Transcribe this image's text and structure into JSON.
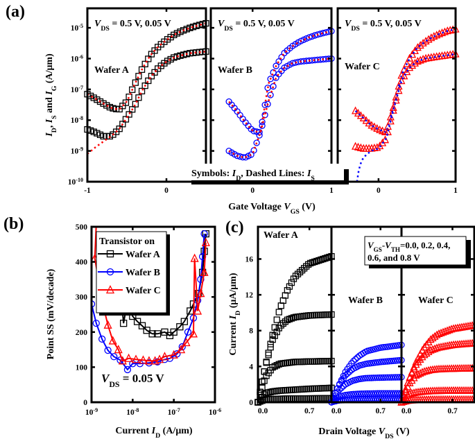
{
  "figure_labels": {
    "a": "(a)",
    "b": "(b)",
    "c": "(c)"
  },
  "chart_data": [
    {
      "panel": "(a)",
      "type": "scatter",
      "yscale": "log",
      "ylim": [
        1e-10,
        4.3e-05
      ],
      "yticks_base": "10",
      "yticks_exp": [
        -10,
        -9,
        -8,
        -7,
        -6,
        -5
      ],
      "ylabel": [
        [
          "I",
          "i"
        ],
        [
          "D",
          "sub"
        ],
        [
          ", ",
          ""
        ],
        [
          "I",
          "i"
        ],
        [
          "S",
          "sub"
        ],
        [
          " and ",
          ""
        ],
        [
          "I",
          "i"
        ],
        [
          "G",
          "sub"
        ],
        [
          " (A/μm)",
          ""
        ]
      ],
      "xlabel": [
        [
          "Gate Voltage ",
          ""
        ],
        [
          "V",
          "i"
        ],
        [
          "GS",
          "sub"
        ],
        [
          " (V)",
          ""
        ]
      ],
      "note": [
        [
          "Symbols: ",
          ""
        ],
        [
          "I",
          "i"
        ],
        [
          "D",
          "sub"
        ],
        [
          ",  Dashed Lines: ",
          ""
        ],
        [
          "I",
          "i"
        ],
        [
          "S",
          "sub"
        ]
      ],
      "subplots": [
        {
          "label": "Wafer A",
          "annotation": [
            [
              "V",
              "i"
            ],
            [
              "DS",
              "sub"
            ],
            [
              " = 0.5 V, 0.05 V",
              ""
            ]
          ],
          "xlim": [
            -1,
            0.5
          ],
          "xticks": [
            -1,
            0
          ],
          "marker": "square",
          "color": "#000000",
          "is_color": "#ff0000",
          "series": [
            {
              "vds": 0.5,
              "x": [
                -1,
                -0.9,
                -0.8,
                -0.7,
                -0.6,
                -0.5,
                -0.4,
                -0.3,
                -0.2,
                -0.1,
                0,
                0.1,
                0.2,
                0.3,
                0.4,
                0.5
              ],
              "id": [
                7e-08,
                5e-08,
                3.5e-08,
                2.5e-08,
                2.2e-08,
                4e-08,
                1.5e-07,
                5e-07,
                1.3e-06,
                2.5e-06,
                4e-06,
                6e-06,
                8e-06,
                1e-05,
                1.2e-05,
                1.4e-05
              ]
            },
            {
              "vds": 0.05,
              "x": [
                -1,
                -0.9,
                -0.8,
                -0.7,
                -0.6,
                -0.5,
                -0.4,
                -0.3,
                -0.2,
                -0.1,
                0,
                0.1,
                0.2,
                0.3,
                0.4,
                0.5
              ],
              "id": [
                5e-09,
                4e-09,
                3e-09,
                3e-09,
                5e-09,
                1.2e-08,
                3e-08,
                1e-07,
                2.5e-07,
                5e-07,
                8e-07,
                1.1e-06,
                1.3e-06,
                1.5e-06,
                1.6e-06,
                1.7e-06
              ],
              "is_x": [
                -1,
                -0.9,
                -0.8,
                -0.7,
                -0.6,
                -0.5,
                -0.4,
                -0.3,
                -0.2,
                -0.1,
                0,
                0.1,
                0.2,
                0.3,
                0.4,
                0.5
              ],
              "is": [
                8e-10,
                1.3e-09,
                2e-09,
                3e-09,
                5e-09,
                1.2e-08,
                3e-08,
                1e-07,
                2.5e-07,
                5e-07,
                8e-07,
                1.1e-06,
                1.3e-06,
                1.5e-06,
                1.6e-06,
                1.7e-06
              ]
            }
          ]
        },
        {
          "label": "Wafer B",
          "annotation": [
            [
              "V",
              "i"
            ],
            [
              "DS",
              "sub"
            ],
            [
              " = 0.5 V, 0.05 V",
              ""
            ]
          ],
          "xlim": [
            -0.53,
            1
          ],
          "xticks": [
            0,
            1
          ],
          "marker": "circle",
          "color": "#0000ff",
          "is_color": "#ff0000",
          "series": [
            {
              "vds": 0.5,
              "x": [
                -0.3,
                -0.2,
                -0.1,
                0,
                0.1,
                0.2,
                0.3,
                0.4,
                0.5,
                0.6,
                0.7,
                0.8,
                0.9,
                1.0
              ],
              "id": [
                4e-08,
                2e-08,
                9e-09,
                4.5e-09,
                4e-09,
                1.5e-07,
                6e-07,
                1.5e-06,
                2.5e-06,
                3.6e-06,
                4.7e-06,
                5.8e-06,
                6.8e-06,
                7.8e-06
              ]
            },
            {
              "vds": 0.05,
              "x": [
                -0.3,
                -0.2,
                -0.1,
                0,
                0.1,
                0.2,
                0.3,
                0.4,
                0.5,
                0.6,
                0.7,
                0.8,
                0.9,
                1.0
              ],
              "id": [
                1e-09,
                7e-10,
                6e-10,
                8e-10,
                4e-09,
                4e-08,
                2.5e-07,
                5e-07,
                7e-07,
                8e-07,
                8.5e-07,
                9e-07,
                9.5e-07,
                1e-06
              ]
            }
          ]
        },
        {
          "label": "Wafer C",
          "annotation": [
            [
              "V",
              "i"
            ],
            [
              "DS",
              "sub"
            ],
            [
              " = 0.5 V, 0.05 V",
              ""
            ]
          ],
          "xlim": [
            -0.53,
            1
          ],
          "xticks": [
            0,
            1
          ],
          "marker": "triangle",
          "color": "#ff0000",
          "is_color": "#0000ff",
          "series": [
            {
              "vds": 0.5,
              "x": [
                -0.3,
                -0.2,
                -0.1,
                0,
                0.1,
                0.2,
                0.3,
                0.4,
                0.5,
                0.6,
                0.7,
                0.8,
                0.9,
                1.0
              ],
              "id": [
                2e-08,
                1.2e-08,
                7e-09,
                5e-09,
                4e-09,
                3e-08,
                3e-07,
                1e-06,
                2.2e-06,
                3.5e-06,
                5e-06,
                6.5e-06,
                8e-06,
                9e-06
              ]
            },
            {
              "vds": 0.05,
              "x": [
                -0.3,
                -0.2,
                -0.1,
                0,
                0.1,
                0.2,
                0.3,
                0.4,
                0.5,
                0.6,
                0.7,
                0.8,
                0.9,
                1.0
              ],
              "id": [
                1.4e-09,
                1.2e-09,
                1.2e-09,
                1.3e-09,
                2.5e-09,
                2.5e-08,
                2e-07,
                5e-07,
                8e-07,
                1e-06,
                1.1e-06,
                1.2e-06,
                1.3e-06,
                1.4e-06
              ],
              "is_x": [
                -0.28,
                -0.25,
                -0.2,
                -0.1,
                0,
                0.1,
                0.2,
                0.3,
                0.4,
                0.5,
                0.6,
                0.7,
                0.8,
                0.9,
                1.0
              ],
              "is": [
                1e-10,
                3e-10,
                6e-10,
                1e-09,
                1.2e-09,
                2.5e-09,
                2.5e-08,
                2e-07,
                5e-07,
                8e-07,
                1e-06,
                1.1e-06,
                1.2e-06,
                1.3e-06,
                1.4e-06
              ]
            }
          ]
        }
      ]
    },
    {
      "panel": "(b)",
      "type": "line",
      "xscale": "log",
      "xlim": [
        1e-09,
        1e-06
      ],
      "xticks_base": "10",
      "xticks_exp": [
        -9,
        -8,
        -7,
        -6
      ],
      "ylim": [
        0,
        500
      ],
      "yticks": [
        0,
        100,
        200,
        300,
        400,
        500
      ],
      "ylabel": [
        [
          "Point SS (mV/decade)",
          ""
        ]
      ],
      "xlabel": [
        [
          "Current ",
          ""
        ],
        [
          "I",
          "i"
        ],
        [
          "D",
          "sub"
        ],
        [
          " (A/μm)",
          ""
        ]
      ],
      "annotation": [
        [
          "V",
          "i"
        ],
        [
          "DS",
          "sub"
        ],
        [
          " = 0.05 V",
          ""
        ]
      ],
      "legend": {
        "title": "Transistor on",
        "position": "top-left"
      },
      "series": [
        {
          "name": "Wafer A",
          "marker": "square",
          "color": "#000000",
          "x": [
            5e-09,
            6e-09,
            7e-09,
            8e-09,
            1e-08,
            1.3e-08,
            1.7e-08,
            2.2e-08,
            3e-08,
            4e-08,
            6e-08,
            8e-08,
            1e-07,
            1.4e-07,
            1.8e-07,
            2.5e-07,
            3e-07,
            4e-07,
            5e-07,
            5.5e-07,
            6e-07
          ],
          "y": [
            330,
            225,
            270,
            270,
            245,
            230,
            218,
            205,
            195,
            195,
            200,
            190,
            200,
            215,
            230,
            260,
            280,
            310,
            370,
            430,
            480
          ]
        },
        {
          "name": "Wafer B",
          "marker": "circle",
          "color": "#0000ff",
          "x": [
            1e-09,
            1.3e-09,
            1.8e-09,
            2.5e-09,
            3.5e-09,
            5e-09,
            7.5e-09,
            1e-08,
            1.5e-08,
            2.5e-08,
            4e-08,
            6e-08,
            8e-08,
            1.2e-07,
            1.6e-07,
            2.2e-07,
            3e-07,
            3.8e-07,
            4.5e-07,
            5e-07,
            5.5e-07
          ],
          "y": [
            280,
            225,
            180,
            148,
            130,
            120,
            93,
            110,
            110,
            112,
            115,
            122,
            125,
            138,
            158,
            200,
            240,
            290,
            350,
            415,
            480
          ]
        },
        {
          "name": "Wafer C",
          "marker": "triangle",
          "color": "#ff0000",
          "x": [
            1.2e-09,
            1.8e-09,
            2.5e-09,
            3.3e-09,
            4.5e-09,
            5.7e-09,
            8e-09,
            1.2e-08,
            1.8e-08,
            2.5e-08,
            3.5e-08,
            4.5e-08,
            6e-08,
            1e-07,
            1.5e-07,
            2e-07,
            3e-07,
            3.2e-07,
            3.8e-07,
            4.5e-07,
            5.5e-07,
            6e-07
          ],
          "y": [
            410,
            290,
            220,
            175,
            150,
            118,
            125,
            122,
            120,
            118,
            118,
            122,
            130,
            135,
            150,
            170,
            195,
            410,
            260,
            310,
            370,
            455
          ]
        }
      ]
    },
    {
      "panel": "(c)",
      "type": "scatter",
      "ylim": [
        0,
        19.6
      ],
      "yticks": [
        0,
        4,
        8,
        12,
        16
      ],
      "xlim": [
        0,
        1.0
      ],
      "xticks": [
        "0.0",
        "0.7"
      ],
      "ylabel": [
        [
          "Current ",
          ""
        ],
        [
          "I",
          "i"
        ],
        [
          "D",
          "sub"
        ],
        [
          " (μA/μm)",
          ""
        ]
      ],
      "xlabel": [
        [
          "Drain Voltage ",
          ""
        ],
        [
          "V",
          "i"
        ],
        [
          "DS",
          "sub"
        ],
        [
          " (V)",
          ""
        ]
      ],
      "note_line1": [
        [
          "V",
          "i"
        ],
        [
          "GS",
          "sub"
        ],
        [
          "-",
          ""
        ],
        [
          "V",
          "i"
        ],
        [
          "TH",
          "sub"
        ],
        [
          "=0.0, 0.2, 0.4,",
          ""
        ]
      ],
      "note_line2": [
        [
          "0.6, and 0.8 V",
          ""
        ]
      ],
      "vgs_minus_vth": [
        0.0,
        0.2,
        0.4,
        0.6,
        0.8
      ],
      "vds": [
        0,
        0.1,
        0.2,
        0.3,
        0.4,
        0.5,
        0.7,
        1.0
      ],
      "subplots": [
        {
          "label": "Wafer A",
          "marker": "square",
          "color": "#000000",
          "curves": [
            [
              0,
              0.3,
              0.35,
              0.38,
              0.4,
              0.4,
              0.42,
              0.45
            ],
            [
              0,
              1.0,
              1.2,
              1.3,
              1.35,
              1.4,
              1.5,
              1.6
            ],
            [
              0,
              2.8,
              3.9,
              4.3,
              4.4,
              4.5,
              4.55,
              4.6
            ],
            [
              0,
              4,
              7,
              8.5,
              9.2,
              9.5,
              9.7,
              9.8
            ],
            [
              0,
              4,
              7.5,
              10.5,
              12.5,
              14,
              15.5,
              16.3
            ]
          ]
        },
        {
          "label": "Wafer B",
          "marker": "circle",
          "color": "#0000ff",
          "curves": [
            [
              0,
              0.2,
              0.25,
              0.28,
              0.3,
              0.3,
              0.3,
              0.3
            ],
            [
              0,
              0.6,
              0.8,
              0.9,
              0.95,
              0.97,
              1.0,
              1.0
            ],
            [
              0,
              1.3,
              2,
              2.4,
              2.6,
              2.7,
              2.75,
              2.8
            ],
            [
              0,
              1.8,
              3,
              3.7,
              4.1,
              4.3,
              4.5,
              4.7
            ],
            [
              0,
              1.8,
              3.4,
              4.5,
              5.2,
              5.7,
              6.1,
              6.4
            ]
          ]
        },
        {
          "label": "Wafer C",
          "marker": "triangle",
          "color": "#ff0000",
          "curves": [
            [
              0,
              0.2,
              0.25,
              0.28,
              0.3,
              0.3,
              0.3,
              0.3
            ],
            [
              0,
              0.9,
              1.1,
              1.2,
              1.25,
              1.28,
              1.3,
              1.3
            ],
            [
              0,
              2,
              3,
              3.4,
              3.6,
              3.7,
              3.75,
              3.8
            ],
            [
              0,
              2.5,
              4.2,
              5.2,
              5.8,
              6.1,
              6.4,
              6.6
            ],
            [
              0,
              2.5,
              4.5,
              6,
              7,
              7.6,
              8.2,
              8.6
            ]
          ]
        }
      ]
    }
  ]
}
